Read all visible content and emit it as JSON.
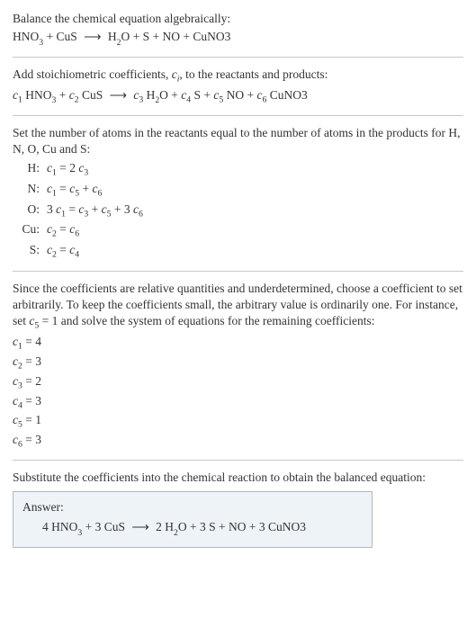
{
  "section1": {
    "line1": "Balance the chemical equation algebraically:"
  },
  "section2": {
    "line1_a": "Add stoichiometric coefficients, ",
    "line1_b": ", to the reactants and products:"
  },
  "section3": {
    "intro_a": "Set the number of atoms in the reactants equal to the number of atoms in the products for H, N, O, Cu and S:"
  },
  "atoms": {
    "rows": [
      {
        "el": "H:"
      },
      {
        "el": "N:"
      },
      {
        "el": "O:"
      },
      {
        "el": "Cu:"
      },
      {
        "el": "S:"
      }
    ]
  },
  "section4": {
    "para": "Since the coefficients are relative quantities and underdetermined, choose a coefficient to set arbitrarily. To keep the coefficients small, the arbitrary value is ordinarily one. For instance, set ",
    "para_b": " and solve the system of equations for the remaining coefficients:"
  },
  "solved": [
    {
      "c": "1",
      "v": "4"
    },
    {
      "c": "2",
      "v": "3"
    },
    {
      "c": "3",
      "v": "2"
    },
    {
      "c": "4",
      "v": "3"
    },
    {
      "c": "5",
      "v": "1"
    },
    {
      "c": "6",
      "v": "3"
    }
  ],
  "section5": {
    "para": "Substitute the coefficients into the chemical reaction to obtain the balanced equation:"
  },
  "answer": {
    "title": "Answer:"
  },
  "chem": {
    "HNO3_a": "HNO",
    "HNO3_b": "3",
    "CuS": "CuS",
    "H2O_a": "H",
    "H2O_b": "2",
    "H2O_c": "O",
    "S": "S",
    "NO": "NO",
    "CuNO3": "CuNO3",
    "plus": " + ",
    "arrow": "⟶",
    "eq": " = ",
    "one": "1",
    "two": "2 ",
    "three": "3 ",
    "four": "4 ",
    "threec6": "3 ",
    "c": "c",
    "i": "i",
    "n2": "2",
    "n3": "3",
    "n4": "4",
    "n5": "5",
    "n6": "6"
  }
}
